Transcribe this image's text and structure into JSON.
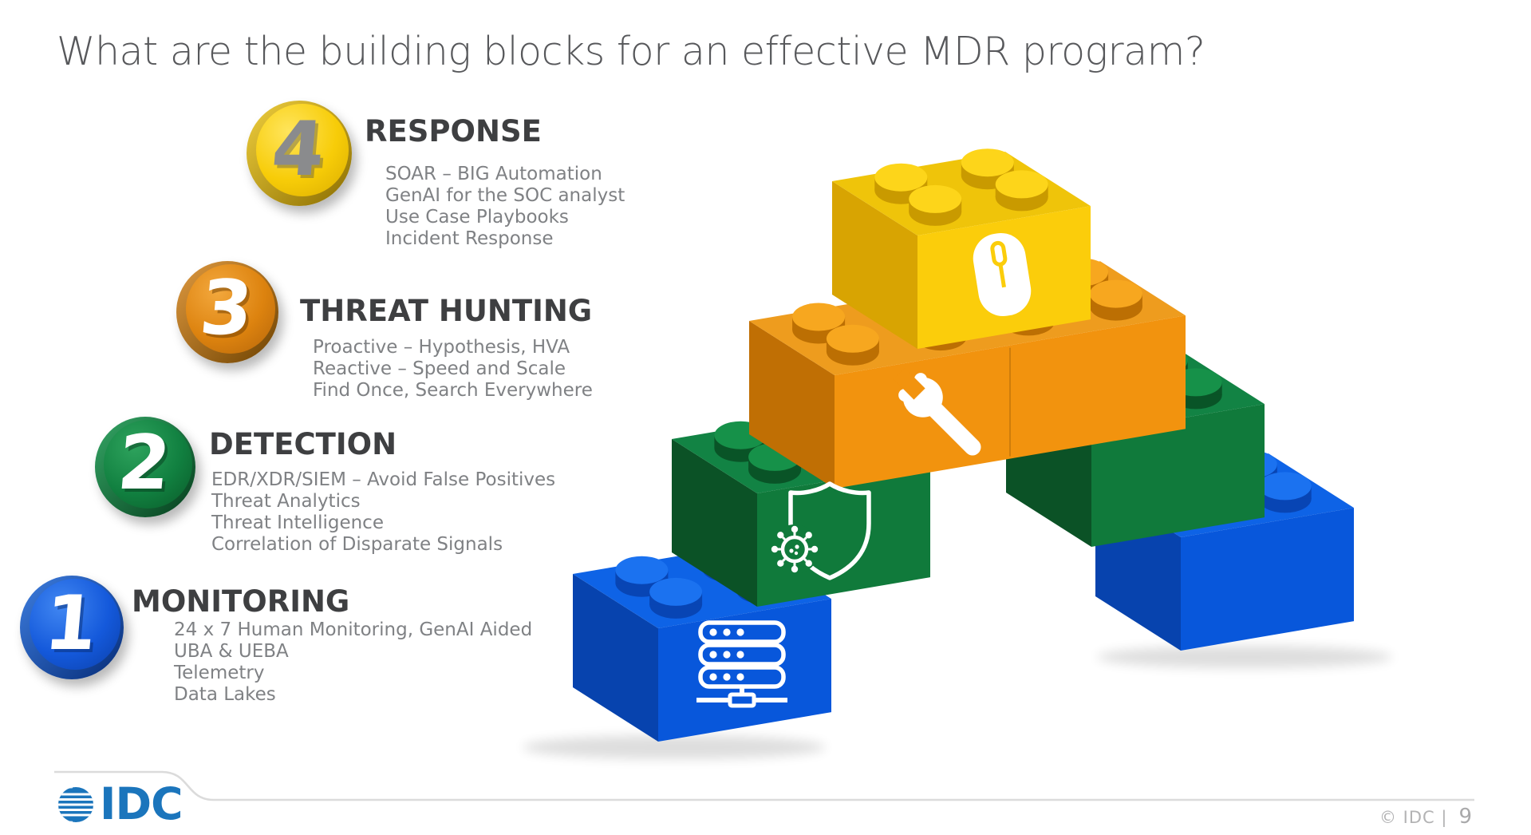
{
  "slide": {
    "title": "What are the building blocks for an effective MDR program?",
    "logo_text": "IDC",
    "footer": {
      "copyright": "© IDC |",
      "page_number": "9"
    }
  },
  "sections": [
    {
      "number": "4",
      "label": "RESPONSE",
      "items": [
        "SOAR – BIG Automation",
        "GenAI for the SOC analyst",
        "Use Case Playbooks",
        "Incident Response"
      ],
      "coin": {
        "face_hi": "#FFE55C",
        "face_mid": "#F7CC08",
        "face_lo": "#D9AC00",
        "rim_hi": "#F0CF3E",
        "rim_lo": "#8A6D00",
        "num": "#8A8B8D",
        "num_shadow": "rgba(80,80,80,0.40)"
      }
    },
    {
      "number": "3",
      "label": "THREAT HUNTING",
      "items": [
        "Proactive – Hypothesis, HVA",
        "Reactive – Speed and Scale",
        "Find Once, Search Everywhere"
      ],
      "coin": {
        "face_hi": "#F3A83D",
        "face_mid": "#DD830F",
        "face_lo": "#B4650A",
        "rim_hi": "#E09A40",
        "rim_lo": "#6E4200",
        "num": "#FFFFFF",
        "num_shadow": "rgba(110,60,0,0.50)"
      }
    },
    {
      "number": "2",
      "label": "DETECTION",
      "items": [
        "EDR/XDR/SIEM – Avoid False Positives",
        "Threat Analytics",
        "Threat Intelligence",
        "Correlation of Disparate Signals"
      ],
      "coin": {
        "face_hi": "#2EA35D",
        "face_mid": "#118040",
        "face_lo": "#0A5A29",
        "rim_hi": "#35A766",
        "rim_lo": "#053D1C",
        "num": "#FFFFFF",
        "num_shadow": "rgba(6,60,30,0.50)"
      }
    },
    {
      "number": "1",
      "label": "MONITORING",
      "items": [
        "24 x 7 Human Monitoring, GenAI Aided",
        "UBA & UEBA",
        "Telemetry",
        "Data Lakes"
      ],
      "coin": {
        "face_hi": "#4187F2",
        "face_mid": "#1459DB",
        "face_lo": "#0B3FA8",
        "rim_hi": "#3E7EE0",
        "rim_lo": "#062C77",
        "num": "#FFFFFF",
        "num_shadow": "rgba(8,45,115,0.50)"
      }
    }
  ],
  "diagram": {
    "bricks": [
      {
        "name": "brick-response",
        "color": "yellow",
        "icon": "mouse-icon"
      },
      {
        "name": "brick-threat-hunting",
        "color": "orange",
        "icon": "wrench-icon"
      },
      {
        "name": "brick-detection",
        "color": "green",
        "icon": "shield-virus-icon"
      },
      {
        "name": "brick-monitoring",
        "color": "blue",
        "icon": "server-icon"
      },
      {
        "name": "brick-right-green",
        "color": "green",
        "icon": null
      },
      {
        "name": "brick-right-blue",
        "color": "blue",
        "icon": null
      }
    ],
    "palette": {
      "yellow": {
        "front": "#FBCD0B",
        "left": "#D8A402",
        "top": "#EFC40A",
        "stud_side": "#C99A00",
        "stud_top": "#FDD51A"
      },
      "orange": {
        "front": "#F2930E",
        "left": "#C06F04",
        "top": "#EE9C1E",
        "stud_side": "#BC6F03",
        "stud_top": "#F7A71F"
      },
      "green": {
        "front": "#107A3B",
        "left": "#0B5226",
        "top": "#128344",
        "stud_side": "#095427",
        "stud_top": "#169149"
      },
      "blue": {
        "front": "#0857DB",
        "left": "#0743AE",
        "top": "#0E63E6",
        "stud_side": "#0845B4",
        "stud_top": "#1B72F0"
      }
    },
    "logo_color": "#1B75BC",
    "line_color": "#DBDBDB"
  }
}
